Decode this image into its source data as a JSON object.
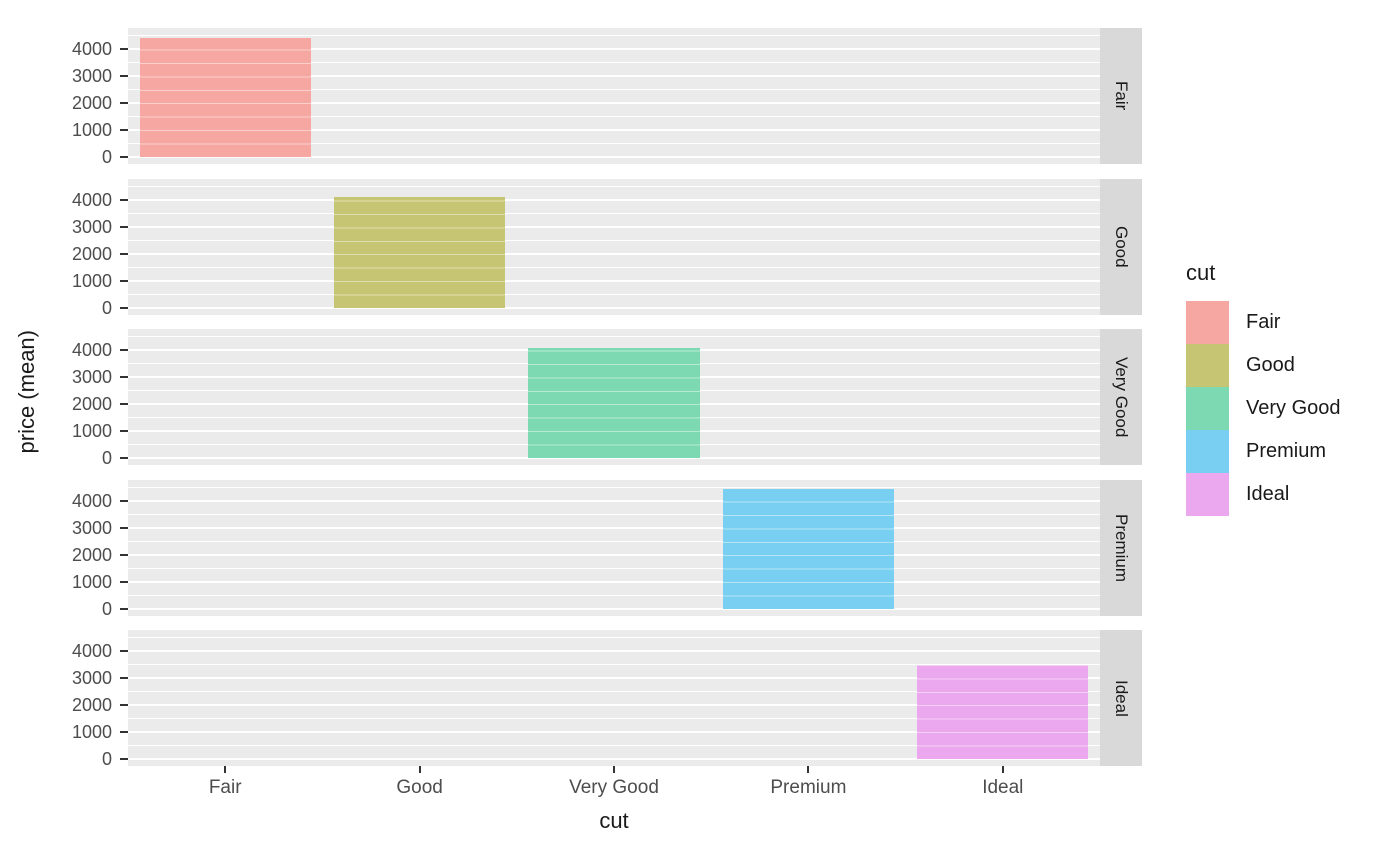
{
  "chart_data": {
    "type": "bar",
    "faceted_by": "cut",
    "facet_strip_side": "right",
    "title": "",
    "xlabel": "cut",
    "ylabel": "price (mean)",
    "categories": [
      "Fair",
      "Good",
      "Very Good",
      "Premium",
      "Ideal"
    ],
    "series": [
      {
        "facet": "Fair",
        "category": "Fair",
        "value": 4400,
        "color": "#F7A7A2"
      },
      {
        "facet": "Good",
        "category": "Good",
        "value": 4120,
        "color": "#C6C573"
      },
      {
        "facet": "Very Good",
        "category": "Very Good",
        "value": 4080,
        "color": "#7CD9B2"
      },
      {
        "facet": "Premium",
        "category": "Premium",
        "value": 4440,
        "color": "#79CFF1"
      },
      {
        "facet": "Ideal",
        "category": "Ideal",
        "value": 3500,
        "color": "#ECA8EF"
      }
    ],
    "y_ticks": [
      0,
      1000,
      2000,
      3000,
      4000
    ],
    "y_minor_step": 500,
    "y_grid_max": 4500,
    "y_domain": [
      -270,
      4790
    ],
    "grid": true,
    "legend_position": "right"
  },
  "legend": {
    "title": "cut",
    "items": [
      {
        "label": "Fair",
        "color": "#F7A7A2"
      },
      {
        "label": "Good",
        "color": "#C6C573"
      },
      {
        "label": "Very Good",
        "color": "#7CD9B2"
      },
      {
        "label": "Premium",
        "color": "#79CFF1"
      },
      {
        "label": "Ideal",
        "color": "#ECA8EF"
      }
    ]
  },
  "colors": {
    "panel_background": "#EBEBEB",
    "strip_background": "#D9D9D9",
    "gridline": "#FFFFFF",
    "axis_text": "#4D4D4D",
    "title_text": "#1A1A1A"
  }
}
